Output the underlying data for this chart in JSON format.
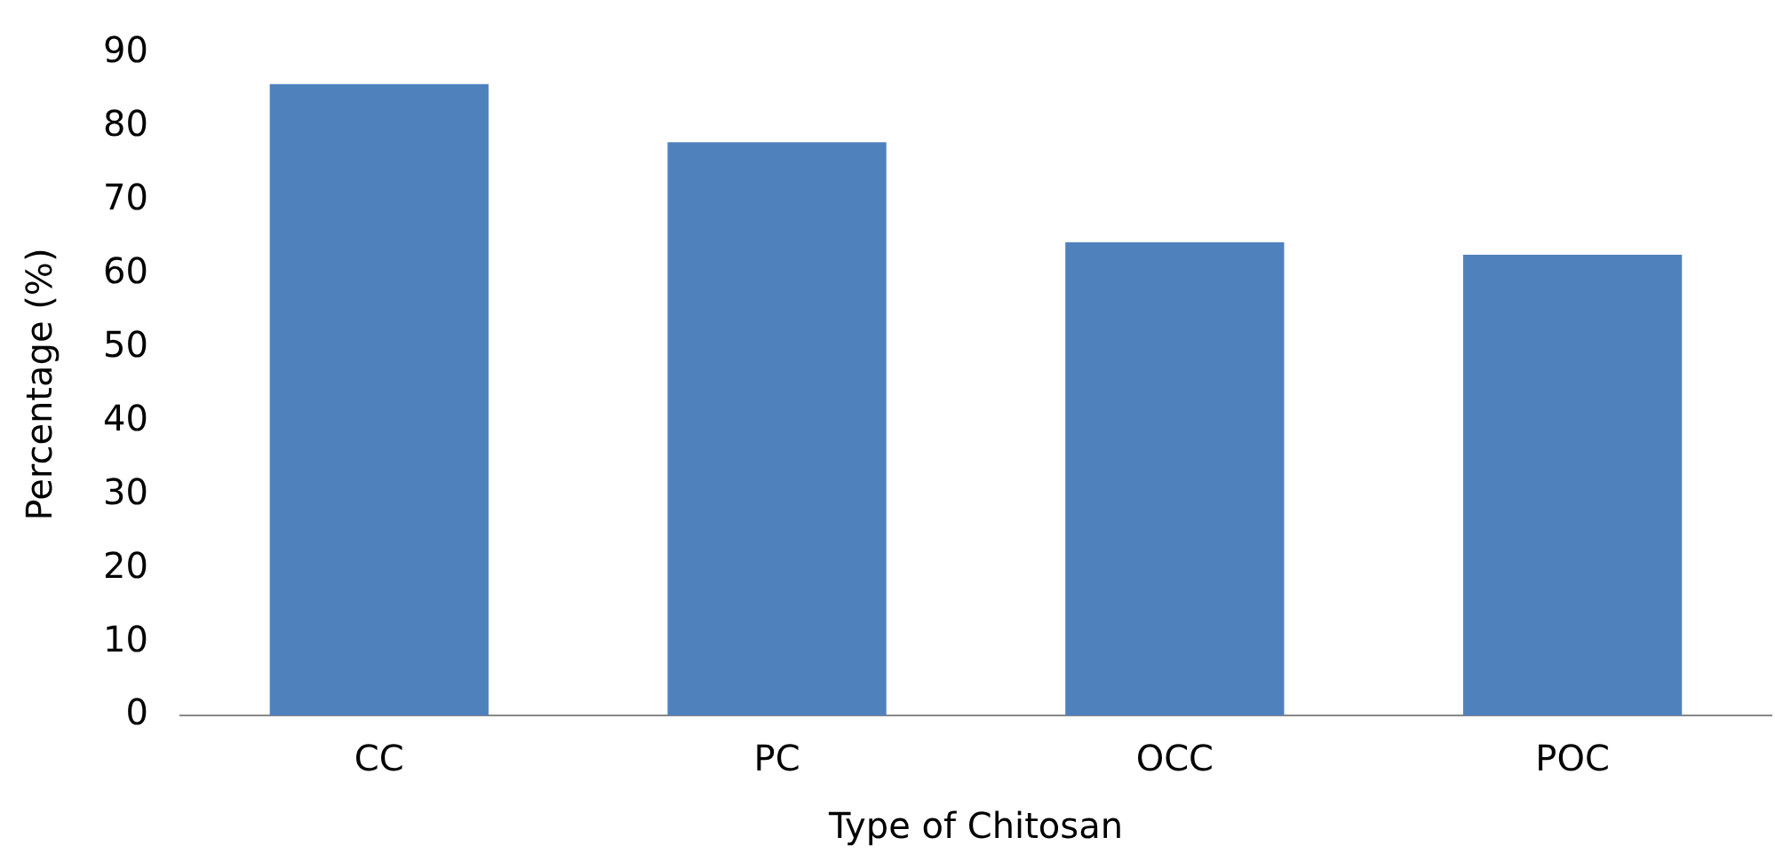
{
  "chart_data": {
    "type": "bar",
    "xlabel": "Type of Chitosan",
    "ylabel": "Percentage (%)",
    "categories": [
      "CC",
      "PC",
      "OCC",
      "POC"
    ],
    "values": [
      85.8,
      77.9,
      64.3,
      62.6
    ],
    "color": "#4f81bd",
    "ylim": [
      0,
      90
    ],
    "yticks": [
      0,
      10,
      20,
      30,
      40,
      50,
      60,
      70,
      80,
      90
    ],
    "grid": false,
    "legend": false
  }
}
